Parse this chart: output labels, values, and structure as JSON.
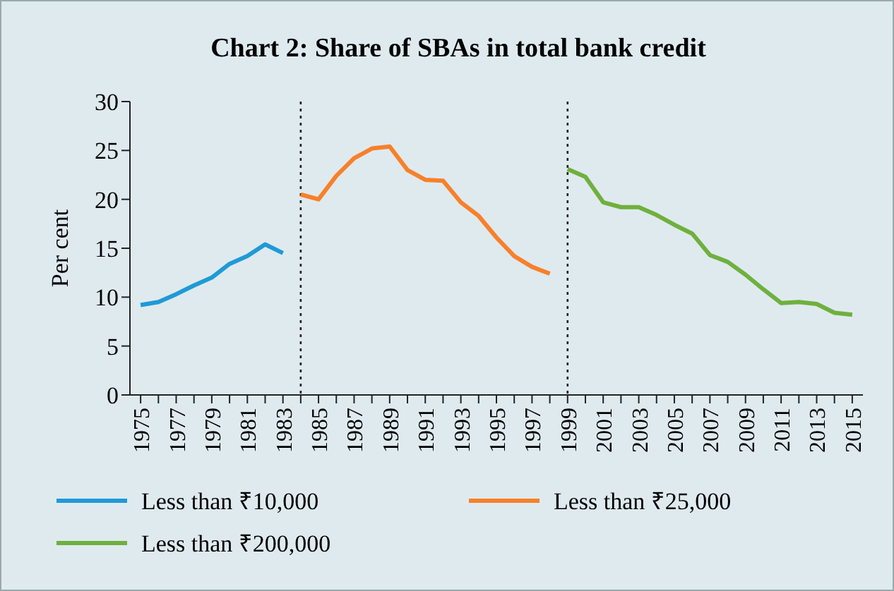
{
  "chart_data": {
    "type": "line",
    "title": "Chart 2: Share of SBAs in total bank credit",
    "ylabel": "Per cent",
    "x": [
      1975,
      1976,
      1977,
      1978,
      1979,
      1980,
      1981,
      1982,
      1983,
      1984,
      1985,
      1986,
      1987,
      1988,
      1989,
      1990,
      1991,
      1992,
      1993,
      1994,
      1995,
      1996,
      1997,
      1998,
      1999,
      2000,
      2001,
      2002,
      2003,
      2004,
      2005,
      2006,
      2007,
      2008,
      2009,
      2010,
      2011,
      2012,
      2013,
      2014,
      2015
    ],
    "xlim": [
      1974.4,
      2015.6
    ],
    "xticks": [
      1975,
      {
        "value": 1976,
        "label": null
      },
      1977,
      {
        "value": 1978,
        "label": null
      },
      1979,
      {
        "value": 1980,
        "label": null
      },
      1981,
      {
        "value": 1982,
        "label": null
      },
      1983,
      {
        "value": 1984,
        "label": null
      },
      1985,
      {
        "value": 1986,
        "label": null
      },
      1987,
      {
        "value": 1988,
        "label": null
      },
      1989,
      {
        "value": 1990,
        "label": null
      },
      1991,
      {
        "value": 1992,
        "label": null
      },
      1993,
      {
        "value": 1994,
        "label": null
      },
      1995,
      {
        "value": 1996,
        "label": null
      },
      1997,
      {
        "value": 1998,
        "label": null
      },
      1999,
      {
        "value": 2000,
        "label": null
      },
      2001,
      {
        "value": 2002,
        "label": null
      },
      2003,
      {
        "value": 2004,
        "label": null
      },
      2005,
      {
        "value": 2006,
        "label": null
      },
      2007,
      {
        "value": 2008,
        "label": null
      },
      2009,
      {
        "value": 2010,
        "label": null
      },
      2011,
      {
        "value": 2012,
        "label": null
      },
      2013,
      {
        "value": 2014,
        "label": null
      },
      2015
    ],
    "series": [
      {
        "name": "Less than ₹10,000",
        "color": "#1f9ad6",
        "values": [
          9.2,
          9.5,
          10.3,
          11.2,
          12.0,
          13.4,
          14.2,
          15.4,
          14.5,
          null,
          null,
          null,
          null,
          null,
          null,
          null,
          null,
          null,
          null,
          null,
          null,
          null,
          null,
          null,
          null,
          null,
          null,
          null,
          null,
          null,
          null,
          null,
          null,
          null,
          null,
          null,
          null,
          null,
          null,
          null,
          null
        ]
      },
      {
        "name": "Less than ₹25,000",
        "color": "#f7802a",
        "values": [
          null,
          null,
          null,
          null,
          null,
          null,
          null,
          null,
          null,
          20.5,
          20.0,
          22.4,
          24.2,
          25.2,
          25.4,
          23.0,
          22.0,
          21.9,
          19.7,
          18.3,
          16.1,
          14.2,
          13.1,
          12.4,
          null,
          null,
          null,
          null,
          null,
          null,
          null,
          null,
          null,
          null,
          null,
          null,
          null,
          null,
          null,
          null,
          null
        ]
      },
      {
        "name": "Less than ₹200,000",
        "color": "#6fb03e",
        "values": [
          null,
          null,
          null,
          null,
          null,
          null,
          null,
          null,
          null,
          null,
          null,
          null,
          null,
          null,
          null,
          null,
          null,
          null,
          null,
          null,
          null,
          null,
          null,
          null,
          23.1,
          22.3,
          19.7,
          19.2,
          19.2,
          18.4,
          17.4,
          16.5,
          14.3,
          13.6,
          12.3,
          10.8,
          9.4,
          9.5,
          9.3,
          8.4,
          8.2
        ]
      }
    ],
    "ylim": [
      0,
      30
    ],
    "yticks": [
      0,
      5,
      10,
      15,
      20,
      25,
      30
    ],
    "grid": false,
    "legend": "bottom",
    "line_style": "solid",
    "marker": "none",
    "ref_lines": [
      {
        "axis": "x",
        "value": 1984,
        "color": "#222222",
        "line_style": "dotted"
      },
      {
        "axis": "x",
        "value": 1999,
        "color": "#222222",
        "line_style": "dotted"
      }
    ]
  }
}
